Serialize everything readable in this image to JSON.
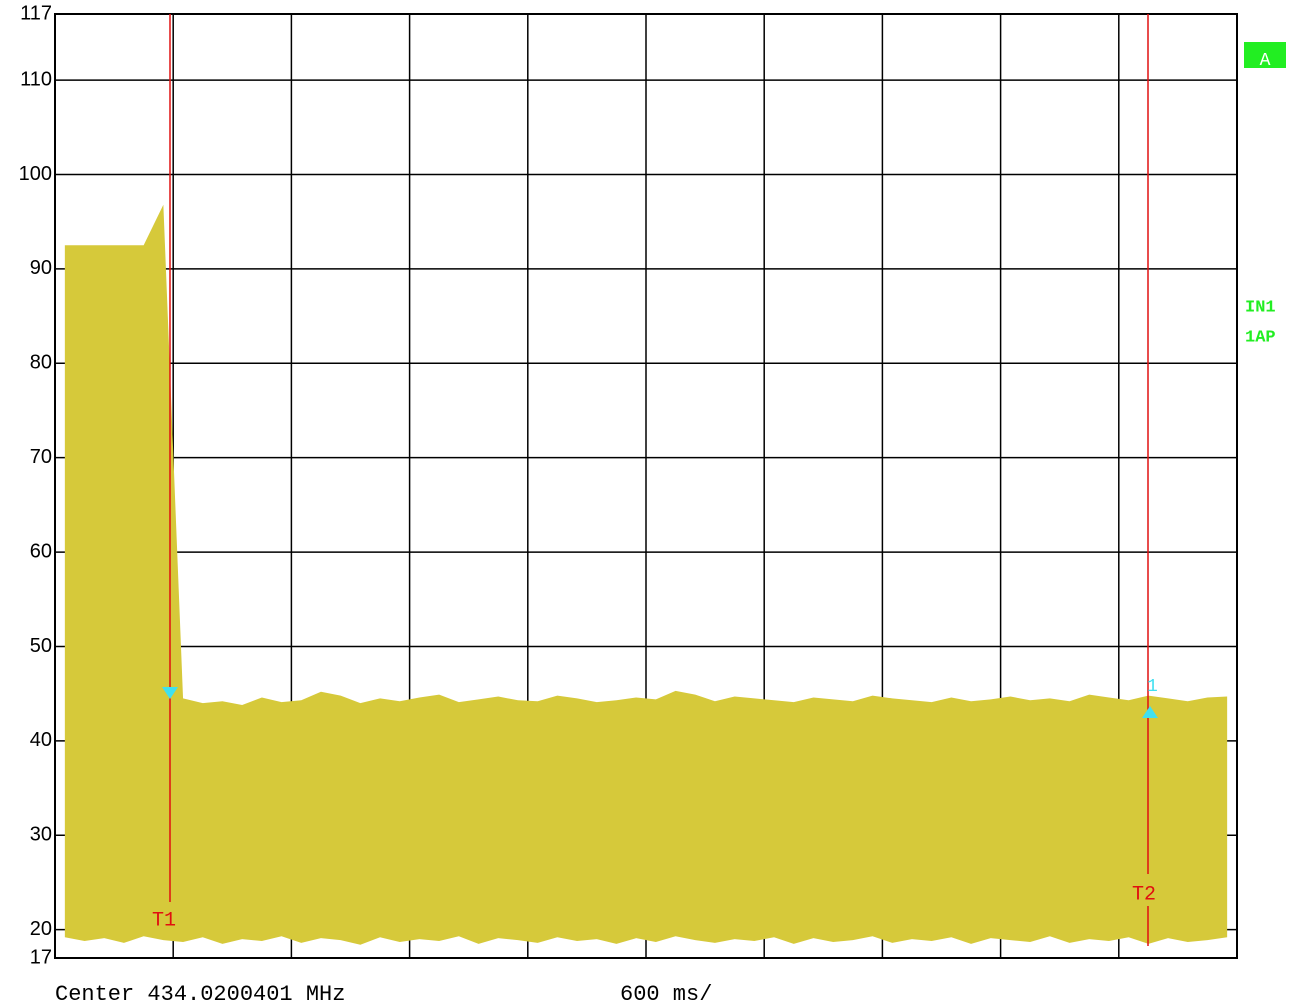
{
  "chart_data": {
    "type": "area",
    "color": "#d6c93a",
    "ylim": [
      17,
      117
    ],
    "yticks": [
      17,
      20,
      30,
      40,
      50,
      60,
      70,
      80,
      90,
      100,
      110,
      117
    ],
    "grid": true,
    "upper": [
      92.5,
      92.5,
      92.5,
      92.5,
      92.5,
      96.8,
      44.5,
      44,
      44.2,
      43.8,
      44.6,
      44.1,
      44.3,
      45.2,
      44.8,
      44,
      44.5,
      44.2,
      44.6,
      44.9,
      44.1,
      44.4,
      44.7,
      44.3,
      44.2,
      44.8,
      44.5,
      44.1,
      44.3,
      44.6,
      44.4,
      45.3,
      44.9,
      44.2,
      44.7,
      44.5,
      44.3,
      44.1,
      44.6,
      44.4,
      44.2,
      44.8,
      44.5,
      44.3,
      44.1,
      44.6,
      44.2,
      44.4,
      44.7,
      44.3,
      44.5,
      44.2,
      44.9,
      44.6,
      44.3,
      44.8,
      44.5,
      44.2,
      44.6,
      44.7
    ],
    "lower": [
      19.2,
      18.8,
      19.1,
      18.6,
      19.3,
      18.9,
      18.7,
      19.2,
      18.5,
      19,
      18.8,
      19.3,
      18.6,
      19.1,
      18.9,
      18.4,
      19.2,
      18.7,
      19,
      18.8,
      19.3,
      18.5,
      19.1,
      18.9,
      18.6,
      19.2,
      18.8,
      19,
      18.5,
      19.1,
      18.7,
      19.3,
      18.9,
      18.6,
      19,
      18.8,
      19.2,
      18.5,
      19.1,
      18.7,
      18.9,
      19.3,
      18.6,
      19,
      18.8,
      19.2,
      18.5,
      19.1,
      18.9,
      18.7,
      19.3,
      18.6,
      19,
      18.8,
      19.2,
      18.5,
      19.1,
      18.7,
      18.9,
      19.2
    ],
    "markers": [
      "T1",
      "T2"
    ],
    "marker_point": "1",
    "side_labels": [
      "A",
      "IN1",
      "1AP"
    ],
    "footer": [
      "Center 434.0200401 MHz",
      "600 ms/"
    ]
  }
}
